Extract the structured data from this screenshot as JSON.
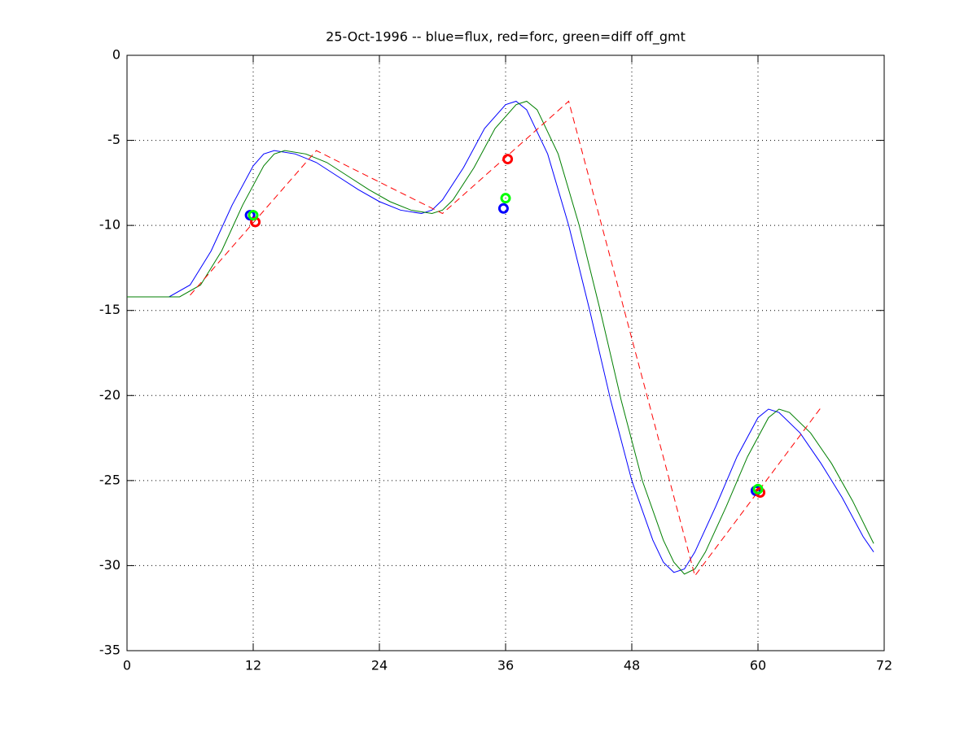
{
  "chart_data": {
    "type": "line",
    "title": "25-Oct-1996 -- blue=flux, red=forc, green=diff off_gmt",
    "xlim": [
      0,
      72
    ],
    "xticks": [
      0,
      12,
      24,
      36,
      48,
      60,
      72
    ],
    "ylim": [
      -35,
      0
    ],
    "yticks": [
      -35,
      -30,
      -25,
      -20,
      -15,
      -10,
      -5,
      0
    ],
    "grid": true,
    "series": [
      {
        "color": "#0000ff",
        "mark": "line",
        "dashed": false,
        "x": [
          0,
          4,
          6,
          8,
          10,
          12,
          13,
          14,
          16,
          18,
          20,
          22,
          24,
          26,
          28,
          29,
          30,
          32,
          34,
          36,
          37,
          38,
          40,
          42,
          44,
          46,
          48,
          50,
          51,
          52,
          53,
          54,
          56,
          58,
          60,
          61,
          62,
          64,
          66,
          68,
          70,
          71
        ],
        "values": [
          -14.2,
          -14.2,
          -13.5,
          -11.5,
          -8.8,
          -6.5,
          -5.8,
          -5.6,
          -5.8,
          -6.3,
          -7.1,
          -7.9,
          -8.6,
          -9.1,
          -9.3,
          -9.1,
          -8.5,
          -6.6,
          -4.3,
          -2.9,
          -2.7,
          -3.2,
          -5.8,
          -10.0,
          -15.0,
          -20.3,
          -25.0,
          -28.5,
          -29.8,
          -30.4,
          -30.2,
          -29.2,
          -26.5,
          -23.6,
          -21.3,
          -20.8,
          -21.0,
          -22.2,
          -24.0,
          -26.0,
          -28.3,
          -29.2
        ]
      },
      {
        "color": "#007f00",
        "mark": "line",
        "dashed": false,
        "x": [
          0,
          5,
          7,
          9,
          11,
          13,
          14,
          15,
          17,
          19,
          21,
          23,
          25,
          27,
          29,
          30,
          31,
          33,
          35,
          37,
          38,
          39,
          41,
          43,
          45,
          47,
          49,
          51,
          52,
          53,
          54,
          55,
          57,
          59,
          61,
          62,
          63,
          65,
          67,
          69,
          71
        ],
        "values": [
          -14.2,
          -14.2,
          -13.5,
          -11.5,
          -8.8,
          -6.5,
          -5.8,
          -5.6,
          -5.8,
          -6.3,
          -7.1,
          -7.9,
          -8.6,
          -9.1,
          -9.3,
          -9.1,
          -8.5,
          -6.6,
          -4.3,
          -2.9,
          -2.7,
          -3.2,
          -5.8,
          -10.0,
          -15.0,
          -20.3,
          -25.0,
          -28.5,
          -29.8,
          -30.5,
          -30.2,
          -29.2,
          -26.5,
          -23.6,
          -21.3,
          -20.8,
          -21.0,
          -22.2,
          -24.0,
          -26.2,
          -28.7
        ]
      },
      {
        "color": "#ff0000",
        "mark": "line",
        "dashed": true,
        "x": [
          6,
          18,
          30,
          42,
          54,
          66
        ],
        "values": [
          -14.1,
          -5.6,
          -9.3,
          -2.7,
          -30.6,
          -20.7
        ]
      },
      {
        "color": "#0000ff",
        "mark": "circle",
        "x": [
          11.7,
          35.8,
          59.8
        ],
        "values": [
          -9.4,
          -9.0,
          -25.6
        ]
      },
      {
        "color": "#ff0000",
        "mark": "circle",
        "x": [
          12.2,
          36.2,
          60.2
        ],
        "values": [
          -9.8,
          -6.1,
          -25.7
        ]
      },
      {
        "color": "#00ff00",
        "mark": "circle",
        "x": [
          12,
          36,
          60
        ],
        "values": [
          -9.4,
          -8.4,
          -25.5
        ]
      }
    ]
  }
}
